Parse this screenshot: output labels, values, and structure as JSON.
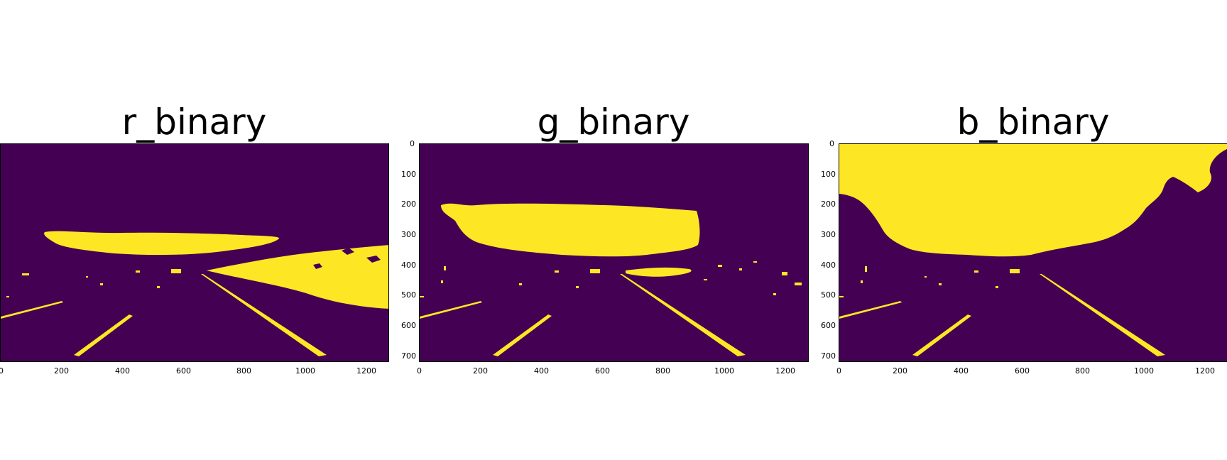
{
  "colors": {
    "background": "#440154",
    "foreground": "#fde725"
  },
  "panels": [
    {
      "title": "r_binary",
      "xticks": [
        "0",
        "200",
        "400",
        "600",
        "800",
        "1000",
        "1200"
      ],
      "yticks": []
    },
    {
      "title": "g_binary",
      "xticks": [
        "0",
        "200",
        "400",
        "600",
        "800",
        "1000",
        "1200"
      ],
      "yticks": [
        "0",
        "100",
        "200",
        "300",
        "400",
        "500",
        "600",
        "700"
      ]
    },
    {
      "title": "b_binary",
      "xticks": [
        "0",
        "200",
        "400",
        "600",
        "800",
        "1000",
        "1200"
      ],
      "yticks": [
        "0",
        "100",
        "200",
        "300",
        "400",
        "500",
        "600",
        "700"
      ]
    }
  ]
}
